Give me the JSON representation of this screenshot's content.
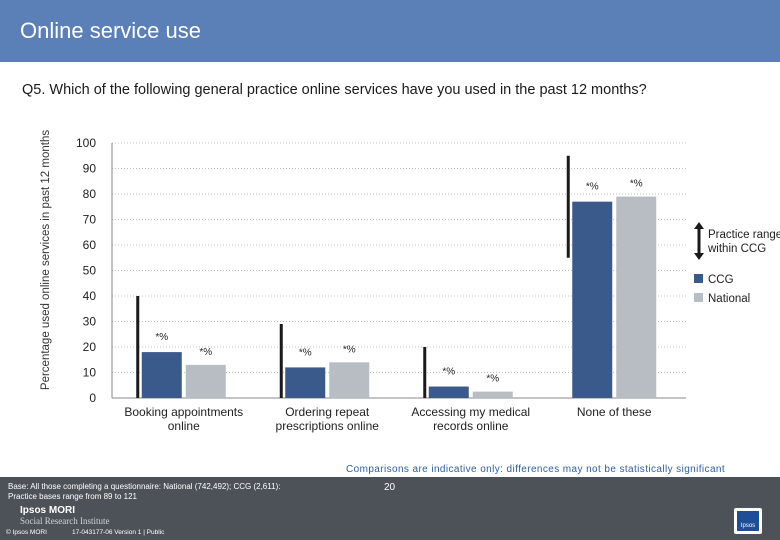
{
  "header": {
    "title": "Online service use"
  },
  "question": "Q5. Which of the following general practice online services have you used in the past 12 months?",
  "chart_data": {
    "type": "bar",
    "ylabel": "Percentage used online services in past 12 months",
    "ylim": [
      0,
      100
    ],
    "yticks": [
      0,
      10,
      20,
      30,
      40,
      50,
      60,
      70,
      80,
      90,
      100
    ],
    "grid": true,
    "categories": [
      "Booking appointments online",
      "Ordering repeat prescriptions online",
      "Accessing my medical records online",
      "None of these"
    ],
    "series": [
      {
        "name": "CCG",
        "color": "#3b5a8c",
        "values": [
          18,
          12,
          4.5,
          77
        ],
        "labels": [
          "*%",
          "*%",
          "*%",
          "*%"
        ]
      },
      {
        "name": "National",
        "color": "#b8bdc3",
        "values": [
          13,
          14,
          2.5,
          79
        ],
        "labels": [
          "*%",
          "*%",
          "*%",
          "*%"
        ]
      }
    ],
    "practice_range": [
      [
        0,
        40
      ],
      [
        0,
        29
      ],
      [
        0,
        20
      ],
      [
        55,
        95
      ]
    ],
    "legend": [
      {
        "label": "Practice range within CCG",
        "kind": "range"
      },
      {
        "label": "CCG",
        "kind": "swatch",
        "color": "#3b5a8c"
      },
      {
        "label": "National",
        "kind": "swatch",
        "color": "#b8bdc3"
      }
    ],
    "legend_position": "right"
  },
  "note": "Comparisons are indicative only: differences may not be statistically significant",
  "footer": {
    "base_line1": "Base: All those completing a questionnaire: National (742,492); CCG (2,611):",
    "base_line2": "Practice bases range from 89 to 121",
    "page_number": "20",
    "logo_line1": "Ipsos MORI",
    "logo_line2": "Social Research Institute",
    "copyright": "© Ipsos MORI",
    "job_ref": "17-043177-06 Version 1 | Public",
    "ipsos_logo_text": "Ipsos"
  }
}
